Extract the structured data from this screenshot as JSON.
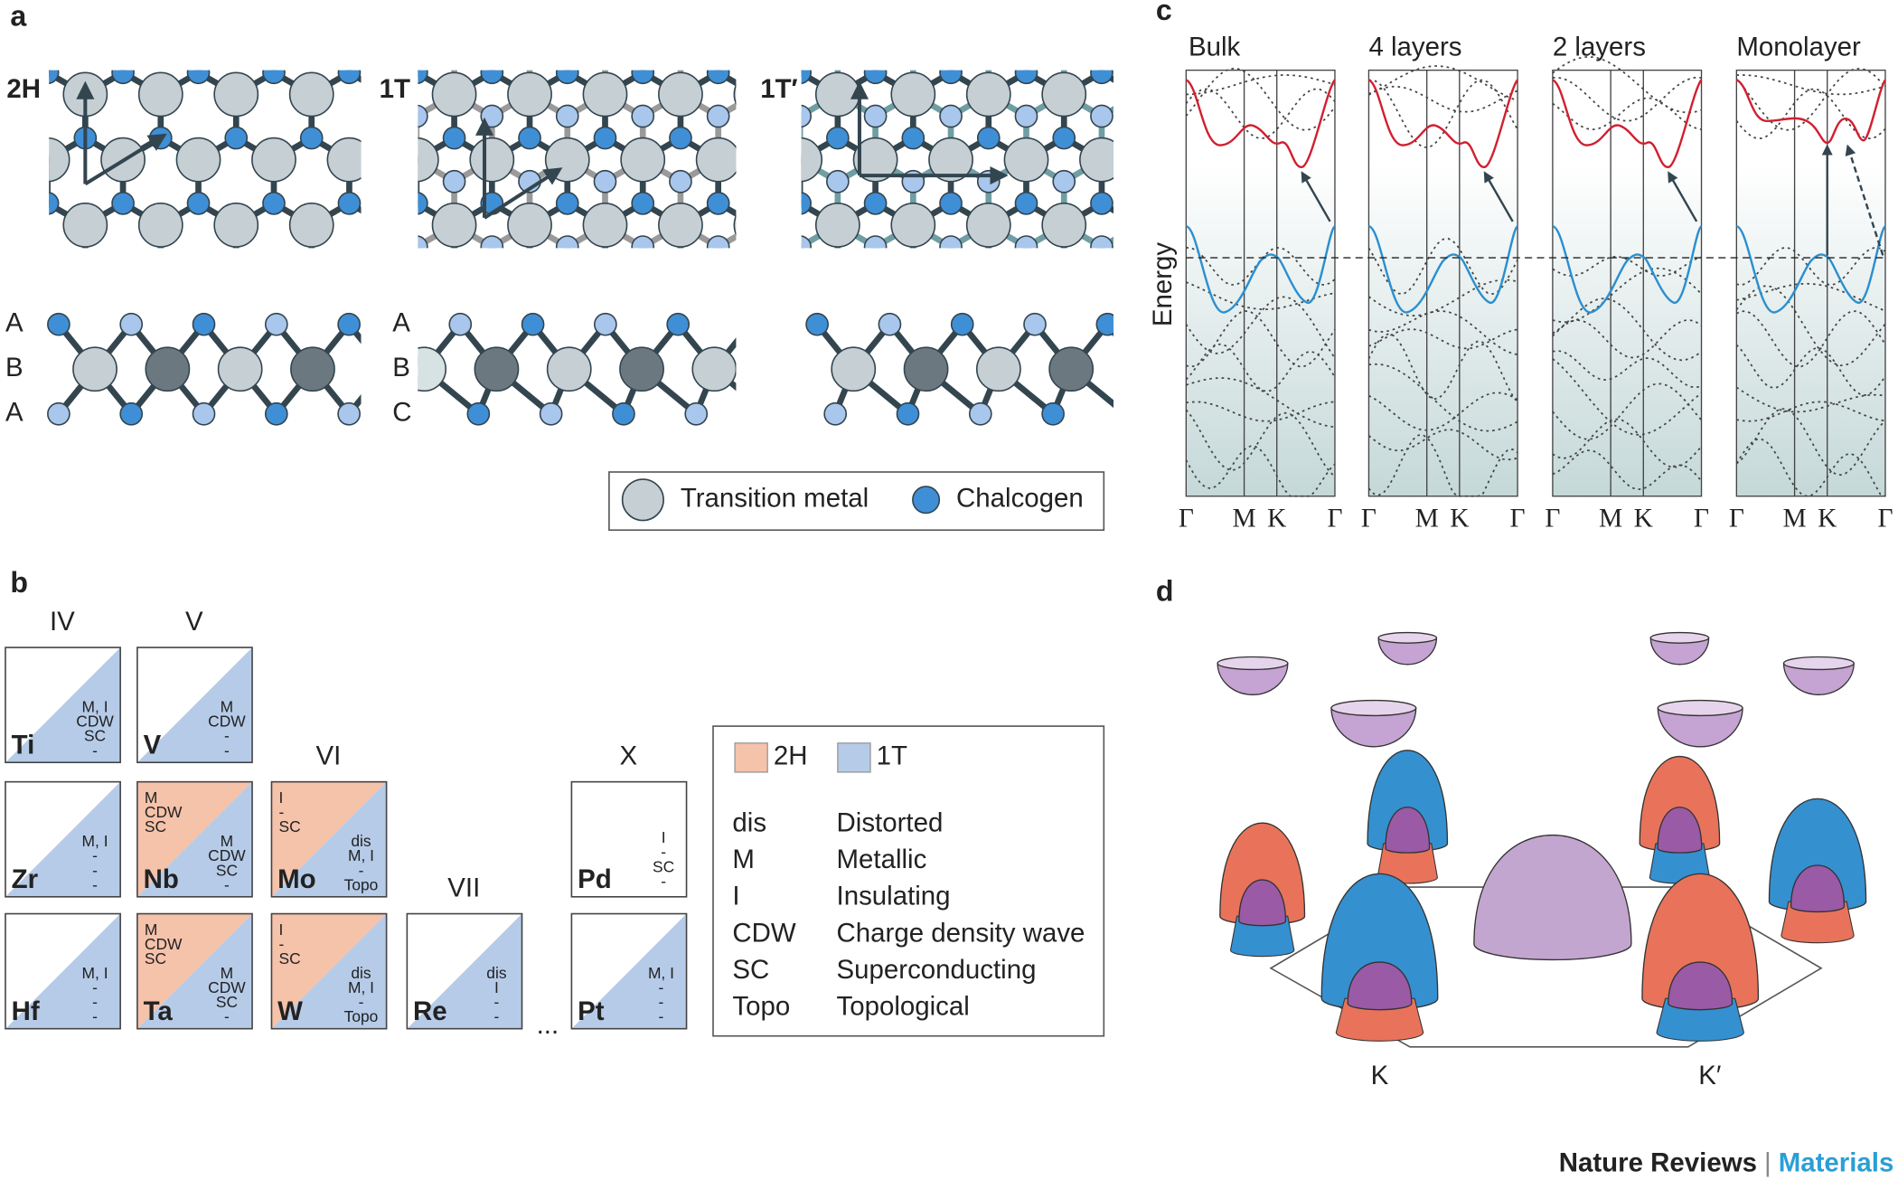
{
  "panel_labels": [
    "a",
    "b",
    "c",
    "d"
  ],
  "a": {
    "structures": [
      {
        "name": "2H",
        "stacking": [
          "A",
          "B",
          "A"
        ]
      },
      {
        "name": "1T",
        "stacking": [
          "A",
          "B",
          "C"
        ]
      },
      {
        "name": "1T′"
      }
    ],
    "legend": [
      "Transition metal",
      "Chalcogen"
    ]
  },
  "b": {
    "groups": [
      {
        "label": "IV",
        "cells": [
          {
            "element": "Ti",
            "phase_1T": [
              "M, I",
              "CDW",
              "SC",
              "-"
            ]
          },
          {
            "element": "Zr",
            "phase_1T": [
              "M, I",
              "-",
              "-",
              "-"
            ]
          },
          {
            "element": "Hf",
            "phase_1T": [
              "M, I",
              "-",
              "-",
              "-"
            ]
          }
        ]
      },
      {
        "label": "V",
        "cells": [
          {
            "element": "V",
            "phase_1T": [
              "M",
              "CDW",
              "-",
              "-"
            ]
          },
          {
            "element": "Nb",
            "phase_2H": [
              "M",
              "CDW",
              "SC"
            ],
            "phase_1T": [
              "M",
              "CDW",
              "SC",
              "-"
            ]
          },
          {
            "element": "Ta",
            "phase_2H": [
              "M",
              "CDW",
              "SC"
            ],
            "phase_1T": [
              "M",
              "CDW",
              "SC",
              "-"
            ]
          }
        ]
      },
      {
        "label": "VI",
        "cells": [
          {
            "element": "Mo",
            "phase_2H": [
              "I",
              "-",
              "SC"
            ],
            "phase_1T": [
              "dis",
              "M, I",
              "-",
              "Topo"
            ]
          },
          {
            "element": "W",
            "phase_2H": [
              "I",
              "-",
              "SC"
            ],
            "phase_1T": [
              "dis",
              "M, I",
              "-",
              "Topo"
            ]
          }
        ]
      },
      {
        "label": "VII",
        "cells": [
          {
            "element": "Re",
            "phase_1T": [
              "dis",
              "I",
              "-",
              "-"
            ]
          }
        ]
      },
      {
        "label": "X",
        "cells": [
          {
            "element": "Pd",
            "unassigned": [
              "I",
              "-",
              "SC",
              "-"
            ]
          },
          {
            "element": "Pt",
            "phase_1T": [
              "M, I",
              "-",
              "-",
              "-"
            ]
          }
        ]
      }
    ],
    "ellipsis": "...",
    "legend": {
      "phases": [
        {
          "name": "2H",
          "color": "#f5c2aa"
        },
        {
          "name": "1T",
          "color": "#b5cbe8"
        }
      ],
      "abbreviations": [
        {
          "abbr": "dis",
          "meaning": "Distorted"
        },
        {
          "abbr": "M",
          "meaning": "Metallic"
        },
        {
          "abbr": "I",
          "meaning": "Insulating"
        },
        {
          "abbr": "CDW",
          "meaning": "Charge density wave"
        },
        {
          "abbr": "SC",
          "meaning": "Superconducting"
        },
        {
          "abbr": "Topo",
          "meaning": "Topological"
        }
      ]
    }
  },
  "c": {
    "ylabel": "Energy",
    "panels": [
      {
        "title": "Bulk",
        "kpoints": [
          "Γ",
          "M",
          "K",
          "Γ"
        ]
      },
      {
        "title": "4 layers",
        "kpoints": [
          "Γ",
          "M",
          "K",
          "Γ"
        ]
      },
      {
        "title": "2 layers",
        "kpoints": [
          "Γ",
          "M",
          "K",
          "Γ"
        ]
      },
      {
        "title": "Monolayer",
        "kpoints": [
          "Γ",
          "M",
          "K",
          "Γ"
        ]
      }
    ]
  },
  "d": {
    "labels": [
      "K",
      "K′"
    ]
  },
  "footer": {
    "journal": "Nature Reviews",
    "separator": "|",
    "section": "Materials"
  }
}
